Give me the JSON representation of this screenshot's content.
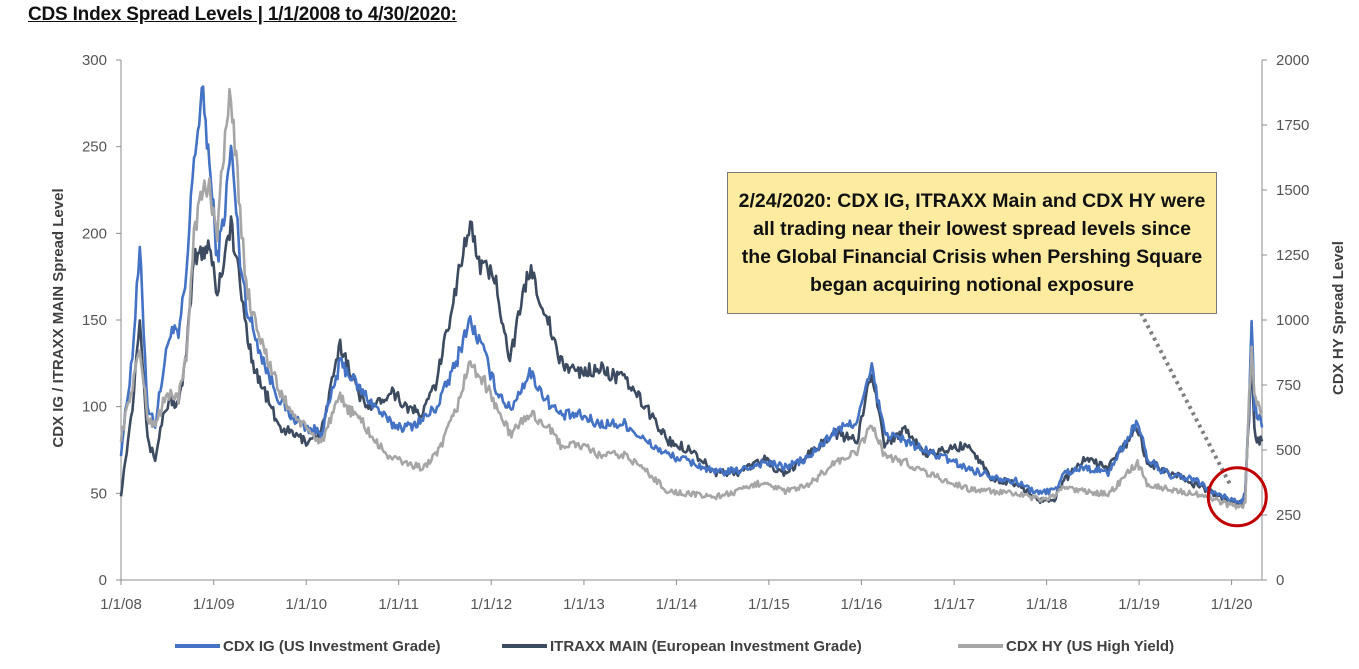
{
  "title": "CDS Index Spread Levels | 1/1/2008 to 4/30/2020:",
  "annotation": {
    "text": "2/24/2020: CDX IG, ITRAXX Main and CDX HY were all trading near their lowest spread levels since the Global Financial Crisis when Pershing Square began acquiring notional exposure",
    "date": "2020-02-24"
  },
  "colors": {
    "cdx_ig": "#4472c4",
    "itraxx": "#3d4b61",
    "cdx_hy": "#a6a6a6",
    "callout_bg": "#fdeba0",
    "highlight_circle": "#c00000"
  },
  "chart_data": {
    "type": "line",
    "title": "CDS Index Spread Levels | 1/1/2008 to 4/30/2020:",
    "xlabel": "",
    "ylabel": "CDX IG / ITRAXX  MAIN  Spread Level",
    "y2label": "CDX HY Spread Level",
    "ylim": [
      0,
      300
    ],
    "y2lim": [
      0,
      2000
    ],
    "xlim": [
      "2008-01-01",
      "2020-04-30"
    ],
    "x_ticks": [
      "1/1/08",
      "1/1/09",
      "1/1/10",
      "1/1/11",
      "1/1/12",
      "1/1/13",
      "1/1/14",
      "1/1/15",
      "1/1/16",
      "1/1/17",
      "1/1/18",
      "1/1/19",
      "1/1/20"
    ],
    "y_ticks": [
      "0",
      "50",
      "100",
      "150",
      "200",
      "250",
      "300"
    ],
    "y2_ticks": [
      "0",
      "250",
      "500",
      "750",
      "1000",
      "1250",
      "1500",
      "1750",
      "2000"
    ],
    "grid": false,
    "legend_position": "bottom",
    "series": [
      {
        "name": "CDX IG (US Investment Grade)",
        "axis": "left",
        "points": [
          [
            "2008-01-01",
            74
          ],
          [
            "2008-02-15",
            130
          ],
          [
            "2008-03-15",
            190
          ],
          [
            "2008-04-15",
            100
          ],
          [
            "2008-05-15",
            90
          ],
          [
            "2008-06-15",
            120
          ],
          [
            "2008-07-15",
            145
          ],
          [
            "2008-08-15",
            140
          ],
          [
            "2008-09-15",
            175
          ],
          [
            "2008-10-15",
            245
          ],
          [
            "2008-11-20",
            280
          ],
          [
            "2008-12-15",
            240
          ],
          [
            "2009-01-15",
            185
          ],
          [
            "2009-02-15",
            215
          ],
          [
            "2009-03-10",
            250
          ],
          [
            "2009-04-15",
            185
          ],
          [
            "2009-05-15",
            155
          ],
          [
            "2009-06-15",
            140
          ],
          [
            "2009-08-01",
            120
          ],
          [
            "2009-09-15",
            105
          ],
          [
            "2009-11-01",
            95
          ],
          [
            "2010-01-01",
            88
          ],
          [
            "2010-03-01",
            85
          ],
          [
            "2010-05-15",
            125
          ],
          [
            "2010-06-15",
            120
          ],
          [
            "2010-08-01",
            110
          ],
          [
            "2010-10-01",
            100
          ],
          [
            "2010-12-01",
            90
          ],
          [
            "2011-02-01",
            88
          ],
          [
            "2011-04-01",
            92
          ],
          [
            "2011-06-01",
            100
          ],
          [
            "2011-08-15",
            125
          ],
          [
            "2011-10-05",
            150
          ],
          [
            "2011-11-25",
            135
          ],
          [
            "2012-01-15",
            112
          ],
          [
            "2012-03-15",
            98
          ],
          [
            "2012-06-01",
            120
          ],
          [
            "2012-08-01",
            105
          ],
          [
            "2012-10-01",
            95
          ],
          [
            "2012-12-15",
            95
          ],
          [
            "2013-03-01",
            90
          ],
          [
            "2013-06-15",
            90
          ],
          [
            "2013-09-01",
            80
          ],
          [
            "2013-12-01",
            72
          ],
          [
            "2014-03-01",
            68
          ],
          [
            "2014-06-01",
            62
          ],
          [
            "2014-09-01",
            63
          ],
          [
            "2014-12-15",
            68
          ],
          [
            "2015-03-01",
            65
          ],
          [
            "2015-06-01",
            70
          ],
          [
            "2015-09-15",
            85
          ],
          [
            "2015-12-15",
            92
          ],
          [
            "2016-02-11",
            122
          ],
          [
            "2016-04-01",
            85
          ],
          [
            "2016-06-27",
            80
          ],
          [
            "2016-09-01",
            75
          ],
          [
            "2016-12-01",
            70
          ],
          [
            "2017-03-01",
            64
          ],
          [
            "2017-06-01",
            60
          ],
          [
            "2017-09-01",
            57
          ],
          [
            "2017-12-01",
            50
          ],
          [
            "2018-02-01",
            52
          ],
          [
            "2018-03-15",
            62
          ],
          [
            "2018-06-01",
            65
          ],
          [
            "2018-09-01",
            62
          ],
          [
            "2018-12-26",
            92
          ],
          [
            "2019-02-01",
            70
          ],
          [
            "2019-05-01",
            60
          ],
          [
            "2019-08-10",
            58
          ],
          [
            "2019-10-01",
            52
          ],
          [
            "2019-12-15",
            47
          ],
          [
            "2020-02-10",
            45
          ],
          [
            "2020-02-24",
            50
          ],
          [
            "2020-03-10",
            100
          ],
          [
            "2020-03-20",
            150
          ],
          [
            "2020-03-31",
            100
          ],
          [
            "2020-04-15",
            95
          ],
          [
            "2020-04-30",
            88
          ]
        ]
      },
      {
        "name": "ITRAXX MAIN (European Investment Grade)",
        "axis": "left",
        "points": [
          [
            "2008-01-01",
            50
          ],
          [
            "2008-02-15",
            100
          ],
          [
            "2008-03-15",
            155
          ],
          [
            "2008-04-15",
            80
          ],
          [
            "2008-05-15",
            70
          ],
          [
            "2008-06-15",
            95
          ],
          [
            "2008-07-15",
            105
          ],
          [
            "2008-08-15",
            100
          ],
          [
            "2008-09-15",
            130
          ],
          [
            "2008-10-15",
            185
          ],
          [
            "2008-11-20",
            190
          ],
          [
            "2008-12-15",
            195
          ],
          [
            "2009-01-15",
            165
          ],
          [
            "2009-02-15",
            190
          ],
          [
            "2009-03-10",
            205
          ],
          [
            "2009-04-15",
            170
          ],
          [
            "2009-05-15",
            140
          ],
          [
            "2009-06-15",
            120
          ],
          [
            "2009-08-01",
            105
          ],
          [
            "2009-09-15",
            88
          ],
          [
            "2009-11-01",
            85
          ],
          [
            "2010-01-01",
            80
          ],
          [
            "2010-03-01",
            85
          ],
          [
            "2010-05-15",
            135
          ],
          [
            "2010-06-15",
            125
          ],
          [
            "2010-08-01",
            105
          ],
          [
            "2010-10-01",
            100
          ],
          [
            "2010-12-01",
            110
          ],
          [
            "2011-02-01",
            100
          ],
          [
            "2011-04-01",
            95
          ],
          [
            "2011-06-01",
            115
          ],
          [
            "2011-08-15",
            170
          ],
          [
            "2011-10-05",
            205
          ],
          [
            "2011-11-25",
            180
          ],
          [
            "2012-01-15",
            175
          ],
          [
            "2012-03-15",
            128
          ],
          [
            "2012-06-01",
            180
          ],
          [
            "2012-08-01",
            155
          ],
          [
            "2012-10-01",
            125
          ],
          [
            "2012-12-15",
            120
          ],
          [
            "2013-03-01",
            122
          ],
          [
            "2013-06-15",
            115
          ],
          [
            "2013-09-01",
            100
          ],
          [
            "2013-12-01",
            80
          ],
          [
            "2014-03-01",
            75
          ],
          [
            "2014-06-01",
            62
          ],
          [
            "2014-09-01",
            62
          ],
          [
            "2014-12-15",
            70
          ],
          [
            "2015-03-01",
            60
          ],
          [
            "2015-06-01",
            72
          ],
          [
            "2015-09-15",
            85
          ],
          [
            "2015-12-15",
            80
          ],
          [
            "2016-02-11",
            122
          ],
          [
            "2016-04-01",
            78
          ],
          [
            "2016-06-27",
            88
          ],
          [
            "2016-09-01",
            72
          ],
          [
            "2016-12-01",
            75
          ],
          [
            "2017-03-01",
            78
          ],
          [
            "2017-06-01",
            58
          ],
          [
            "2017-09-01",
            56
          ],
          [
            "2017-12-01",
            46
          ],
          [
            "2018-02-01",
            47
          ],
          [
            "2018-03-15",
            58
          ],
          [
            "2018-06-01",
            70
          ],
          [
            "2018-09-01",
            65
          ],
          [
            "2018-12-26",
            88
          ],
          [
            "2019-02-01",
            68
          ],
          [
            "2019-05-01",
            62
          ],
          [
            "2019-08-10",
            55
          ],
          [
            "2019-10-01",
            52
          ],
          [
            "2019-12-15",
            45
          ],
          [
            "2020-02-10",
            44
          ],
          [
            "2020-02-24",
            50
          ],
          [
            "2020-03-10",
            95
          ],
          [
            "2020-03-20",
            130
          ],
          [
            "2020-03-31",
            85
          ],
          [
            "2020-04-15",
            80
          ],
          [
            "2020-04-30",
            80
          ]
        ]
      },
      {
        "name": "CDX HY (US High Yield)",
        "axis": "right",
        "points": [
          [
            "2008-01-01",
            550
          ],
          [
            "2008-02-15",
            750
          ],
          [
            "2008-03-15",
            890
          ],
          [
            "2008-04-15",
            620
          ],
          [
            "2008-05-15",
            600
          ],
          [
            "2008-06-15",
            680
          ],
          [
            "2008-07-15",
            720
          ],
          [
            "2008-08-15",
            700
          ],
          [
            "2008-09-15",
            850
          ],
          [
            "2008-10-15",
            1350
          ],
          [
            "2008-11-20",
            1500
          ],
          [
            "2008-12-15",
            1500
          ],
          [
            "2009-01-15",
            1350
          ],
          [
            "2009-02-15",
            1700
          ],
          [
            "2009-03-10",
            1890
          ],
          [
            "2009-04-15",
            1400
          ],
          [
            "2009-05-15",
            1100
          ],
          [
            "2009-06-15",
            1000
          ],
          [
            "2009-08-01",
            850
          ],
          [
            "2009-09-15",
            730
          ],
          [
            "2009-11-01",
            650
          ],
          [
            "2010-01-01",
            580
          ],
          [
            "2010-03-01",
            530
          ],
          [
            "2010-05-15",
            700
          ],
          [
            "2010-06-15",
            660
          ],
          [
            "2010-08-01",
            620
          ],
          [
            "2010-10-01",
            530
          ],
          [
            "2010-12-01",
            470
          ],
          [
            "2011-02-01",
            450
          ],
          [
            "2011-04-01",
            430
          ],
          [
            "2011-06-01",
            480
          ],
          [
            "2011-08-15",
            650
          ],
          [
            "2011-10-05",
            830
          ],
          [
            "2011-11-25",
            780
          ],
          [
            "2012-01-15",
            680
          ],
          [
            "2012-03-15",
            560
          ],
          [
            "2012-06-01",
            640
          ],
          [
            "2012-08-01",
            600
          ],
          [
            "2012-10-01",
            520
          ],
          [
            "2012-12-15",
            520
          ],
          [
            "2013-03-01",
            480
          ],
          [
            "2013-06-15",
            480
          ],
          [
            "2013-09-01",
            420
          ],
          [
            "2013-12-01",
            340
          ],
          [
            "2014-03-01",
            330
          ],
          [
            "2014-06-01",
            320
          ],
          [
            "2014-09-01",
            340
          ],
          [
            "2014-12-15",
            380
          ],
          [
            "2015-03-01",
            340
          ],
          [
            "2015-06-01",
            360
          ],
          [
            "2015-09-15",
            450
          ],
          [
            "2015-12-15",
            490
          ],
          [
            "2016-02-11",
            600
          ],
          [
            "2016-04-01",
            480
          ],
          [
            "2016-06-27",
            450
          ],
          [
            "2016-09-01",
            420
          ],
          [
            "2016-12-01",
            380
          ],
          [
            "2017-03-01",
            350
          ],
          [
            "2017-06-01",
            340
          ],
          [
            "2017-09-01",
            330
          ],
          [
            "2017-12-01",
            310
          ],
          [
            "2018-02-01",
            320
          ],
          [
            "2018-03-15",
            360
          ],
          [
            "2018-06-01",
            340
          ],
          [
            "2018-09-01",
            330
          ],
          [
            "2018-12-26",
            450
          ],
          [
            "2019-02-01",
            370
          ],
          [
            "2019-05-01",
            350
          ],
          [
            "2019-08-10",
            330
          ],
          [
            "2019-10-01",
            320
          ],
          [
            "2019-12-15",
            290
          ],
          [
            "2020-02-10",
            280
          ],
          [
            "2020-02-24",
            300
          ],
          [
            "2020-03-10",
            700
          ],
          [
            "2020-03-20",
            880
          ],
          [
            "2020-03-31",
            700
          ],
          [
            "2020-04-15",
            680
          ],
          [
            "2020-04-30",
            650
          ]
        ]
      }
    ]
  }
}
